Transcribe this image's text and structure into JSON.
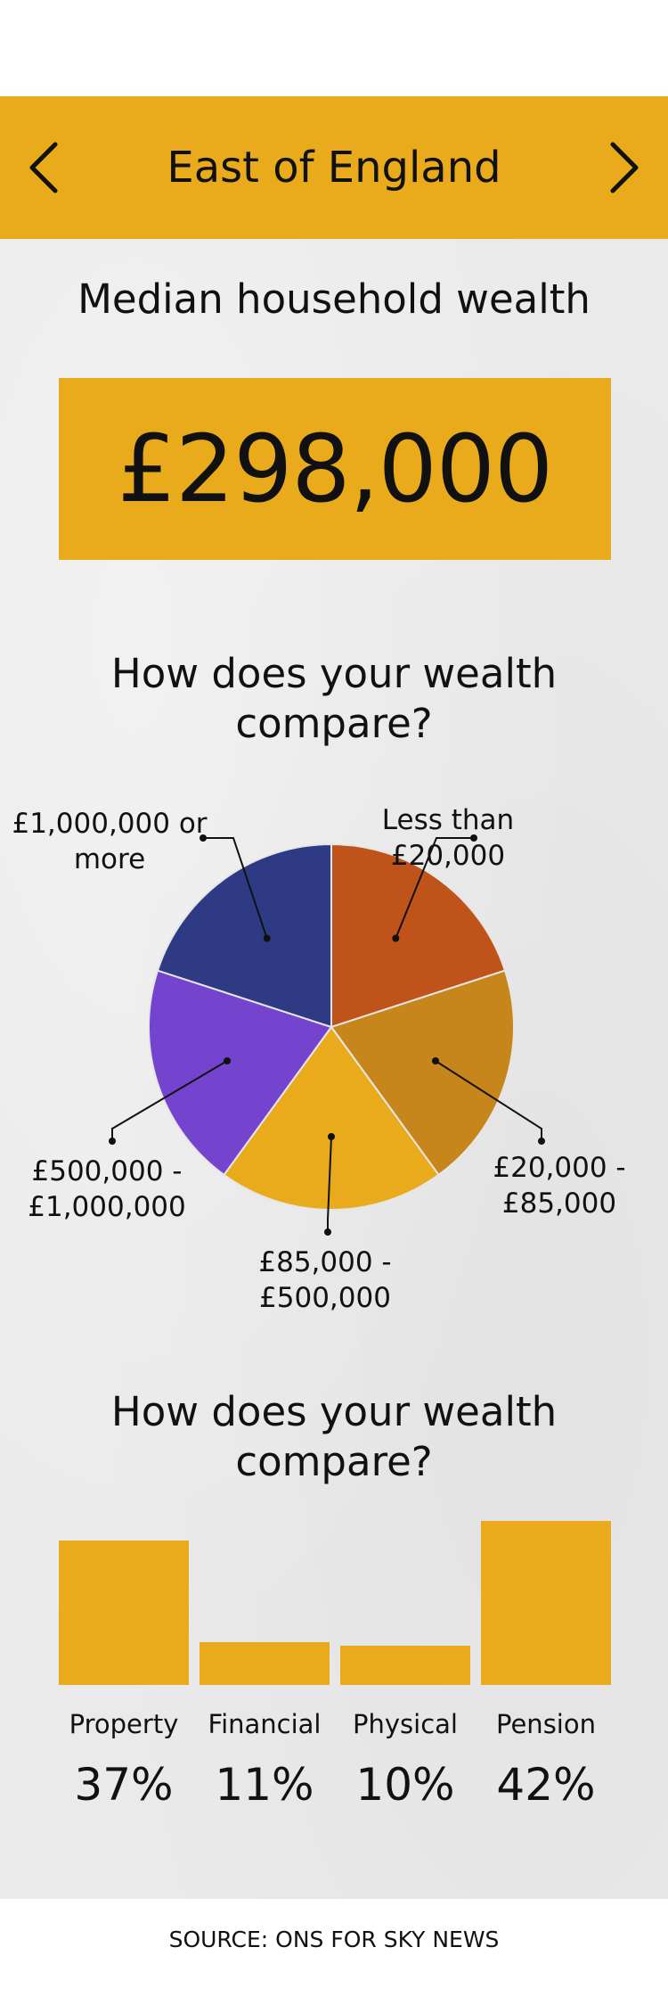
{
  "header": {
    "region": "East of England",
    "prev_icon": "chevron-left-icon",
    "next_icon": "chevron-right-icon",
    "accent": "#e9ab1c"
  },
  "median": {
    "title": "Median household wealth",
    "value": "£298,000"
  },
  "pie_section": {
    "title": "How does your wealth compare?"
  },
  "bar_section": {
    "title": "How does your wealth compare?"
  },
  "chart_data": [
    {
      "type": "pie",
      "title": "How does your wealth compare?",
      "slices": [
        {
          "label": "Less than £20,000",
          "value": 20,
          "color": "#c0531a"
        },
        {
          "label": "£20,000 - £85,000",
          "value": 20,
          "color": "#c7861b"
        },
        {
          "label": "£85,000 - £500,000",
          "value": 20,
          "color": "#e9ab1c"
        },
        {
          "label": "£500,000 - £1,000,000",
          "value": 20,
          "color": "#7444cf"
        },
        {
          "label": "£1,000,000 or more",
          "value": 20,
          "color": "#2e3a84"
        }
      ]
    },
    {
      "type": "bar",
      "title": "How does your wealth compare?",
      "categories": [
        "Property",
        "Financial",
        "Physical",
        "Pension"
      ],
      "values": [
        37,
        11,
        10,
        42
      ],
      "value_labels": [
        "37%",
        "11%",
        "10%",
        "42%"
      ],
      "ylim": [
        0,
        42
      ],
      "color": "#e9ab1c"
    }
  ],
  "source": "SOURCE: ONS FOR SKY NEWS"
}
